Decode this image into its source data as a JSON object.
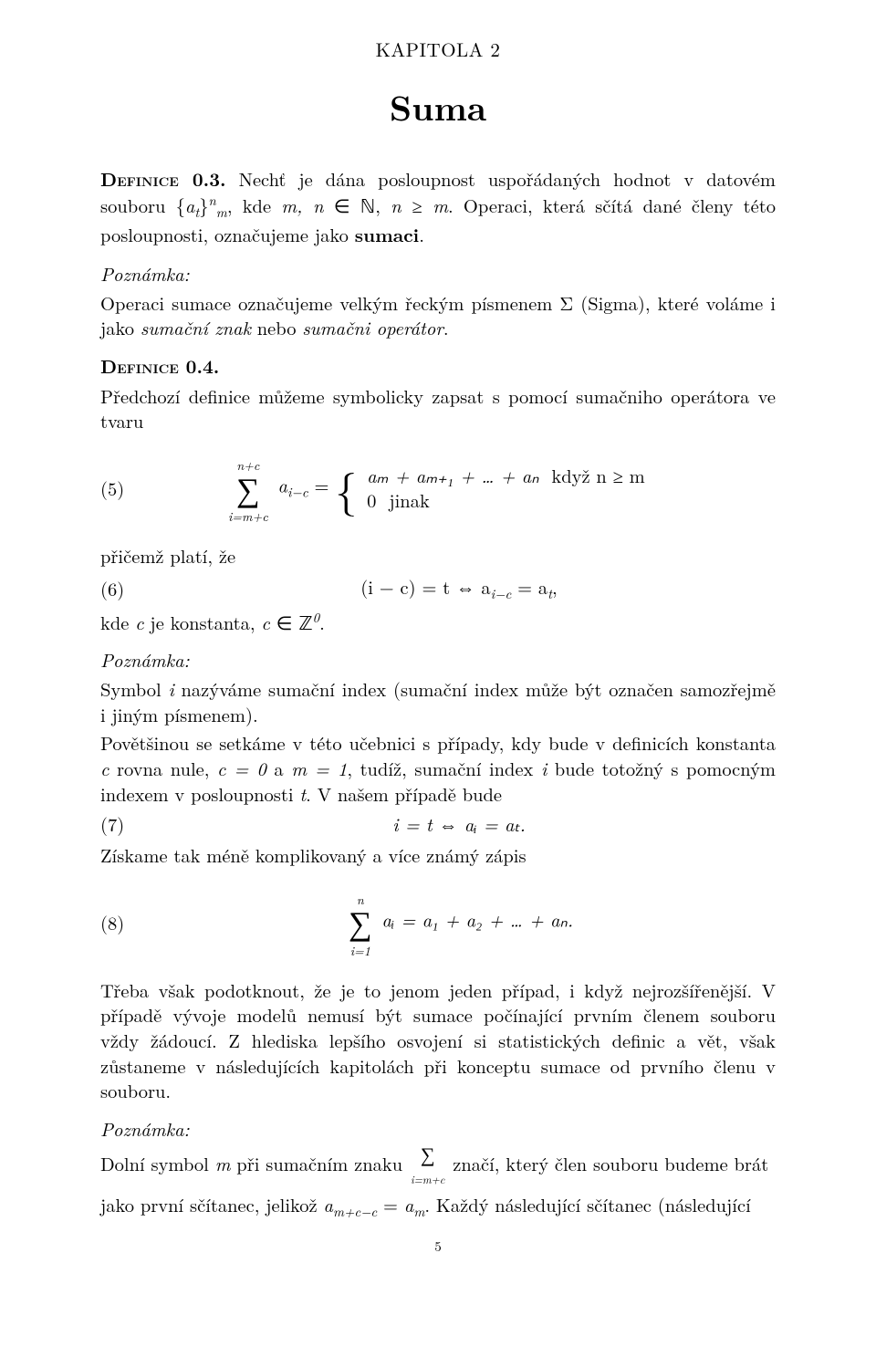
{
  "chapter": {
    "label": "KAPITOLA 2",
    "title": "Suma"
  },
  "def03": {
    "head": "Definice 0.3.",
    "body1": "Nechť je dána posloupnost uspořádaných hodnot v datovém souboru {",
    "at": "a",
    "at_sub": "t",
    "brace2": "}",
    "sup": "n",
    "sub": "m",
    "body2": ", kde ",
    "mn": "m, n",
    "in": " ∈ ℕ, ",
    "ngeqm": "n ≥ m",
    "body3": ". Operaci, která sčítá dané členy této posloupnosti, označujeme jako ",
    "sumaci": "sumaci",
    "dot": "."
  },
  "note1": {
    "label": "Poznámka:",
    "body1": "Operaci sumace označujeme velkým řeckým písmenem Σ (Sigma), které voláme i jako ",
    "i1": "sumační znak",
    "mid": " nebo ",
    "i2": "sumačni operátor",
    "dot": "."
  },
  "def04": {
    "head": "Definice 0.4.",
    "body": "Předchozí definice můžeme symbolicky zapsat s pomocí sumačniho operátora ve tvaru"
  },
  "eq5": {
    "num": "(5)",
    "top": "n+c",
    "bot": "i=m+c",
    "term": "a",
    "term_sub": "i−c",
    "eq": " = ",
    "case1": "aₘ + aₘ₊₁ + … + aₙ",
    "case1cond": "když n ≥ m",
    "case2": "0",
    "case2cond": "jinak"
  },
  "line_pricemz": "přičemž platí, že",
  "eq6": {
    "num": "(6)",
    "body": "(i − c) = t ⇔ a",
    "sub1": "i−c",
    "mid": " = a",
    "sub2": "t",
    "comma": ","
  },
  "line_kdec": {
    "t1": "kde ",
    "c": "c",
    "t2": " je konstanta, ",
    "c2": "c",
    "inZ": " ∈ ℤ",
    "sup0": "0",
    "dot": "."
  },
  "note2": {
    "label": "Poznámka:",
    "p1a": "Symbol ",
    "i": "i",
    "p1b": " nazýváme sumační index (sumační index může být označen samozřejmě i jiným písmenem).",
    "p2a": "Povětšinou se setkáme v této učebnici s případy, kdy bude v definicích konstanta ",
    "c": "c",
    "p2b": " rovna nule, ",
    "eqc": "c = 0",
    "p2c": " a ",
    "eqm": "m = 1",
    "p2d": ", tudíž, sumační index ",
    "i2": "i",
    "p2e": " bude totožný s pomocným indexem v posloupnosti ",
    "t": "t",
    "p2f": ". V našem případě bude"
  },
  "eq7": {
    "num": "(7)",
    "body": "i = t ⇔ aᵢ = aₜ."
  },
  "line_ziskame": "Získame tak méně komplikovaný a více známý zápis",
  "eq8": {
    "num": "(8)",
    "top": "n",
    "bot": "i=1",
    "body": "aᵢ = a₁ + a₂ + … + aₙ."
  },
  "p_treba": "Třeba však podotknout, že je to jenom jeden případ, i když nejrozšířenější. V případě vývoje modelů nemusí být sumace počínající prvním členem souboru vždy žádoucí. Z hlediska lepšího osvojení si statistických definic a vět, však zůstaneme v následujících kapitolách při konceptu sumace od prvního členu v souboru.",
  "note3": {
    "label": "Poznámka:",
    "t1": "Dolní symbol ",
    "m": "m",
    "t2": " při sumačním znaku ",
    "bot": "i=m+c",
    "t3": " značí, který člen souboru budeme brát",
    "t4": "jako první sčítanec, jelikož ",
    "a": "a",
    "asub": "m+c−c",
    "eq": " = ",
    "a2": "a",
    "a2sub": "m",
    "t5": ". Každý následující sčítanec (následující"
  },
  "pagenum": "5"
}
